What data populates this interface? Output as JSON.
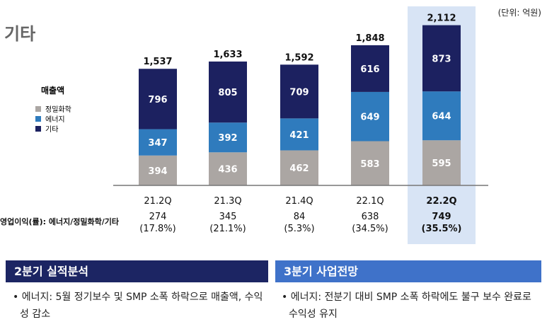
{
  "section_title": "기타",
  "unit_note": "(단위: 억원)",
  "chart_data": {
    "type": "bar",
    "stacked": true,
    "categories": [
      "21.2Q",
      "21.3Q",
      "21.4Q",
      "22.1Q",
      "22.2Q"
    ],
    "highlight_category": "22.2Q",
    "legend_title": "매출액",
    "legend_placement": "left",
    "series": [
      {
        "name": "정밀화학",
        "color": "#aba6a3",
        "values": [
          394,
          436,
          462,
          583,
          595
        ]
      },
      {
        "name": "에너지",
        "color": "#2f7bbd",
        "values": [
          347,
          392,
          421,
          649,
          644
        ]
      },
      {
        "name": "기타",
        "color": "#1c2160",
        "values": [
          796,
          805,
          709,
          616,
          873
        ]
      }
    ],
    "totals": [
      "1,537",
      "1,633",
      "1,592",
      "1,848",
      "2,112"
    ],
    "operating_profit": {
      "label": "영업이익(률): 에너지/정밀화학/기타",
      "values": [
        "274",
        "345",
        "84",
        "638",
        "749"
      ],
      "rates": [
        "(17.8%)",
        "(21.1%)",
        "(5.3%)",
        "(34.5%)",
        "(35.5%)"
      ]
    },
    "highlight_color": "#d8e4f5"
  },
  "q2": {
    "header": "2분기 실적분석",
    "bullets": [
      "에너지: 5월 정기보수 및 SMP 소폭 하락으로 매출액, 수익성 감소"
    ]
  },
  "q3": {
    "header": "3분기 사업전망",
    "bullets": [
      "에너지: 전분기 대비 SMP 소폭 하락에도 불구 보수 완료로 수익성 유지"
    ]
  }
}
